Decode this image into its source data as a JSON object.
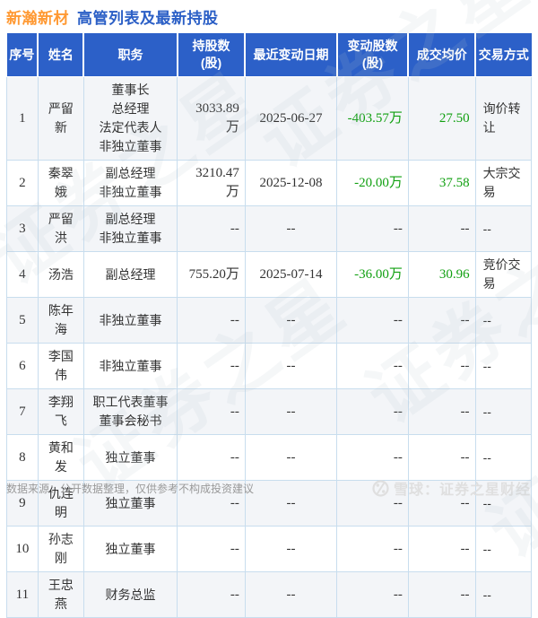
{
  "title": {
    "stock": "新瀚新材",
    "text": "高管列表及最新持股"
  },
  "colors": {
    "header_bg": "#2c60c8",
    "stock_orange": "#ff9933",
    "title_blue": "#2b5fc6",
    "cell_border": "#c8ddee",
    "alt_row_bg": "#f3f5f8",
    "negative_green": "#11a011",
    "body_text": "#333333",
    "note_gray": "#999999",
    "brand_gray": "#dfdfdf"
  },
  "chart_data": {
    "type": "table",
    "title": "新瀚新材 高管列表及最新持股",
    "columns": [
      {
        "key": "idx",
        "label": "序号",
        "align": "center",
        "serif": true
      },
      {
        "key": "name",
        "label": "姓名",
        "align": "center"
      },
      {
        "key": "position",
        "label": "职务",
        "align": "center"
      },
      {
        "key": "shares",
        "label": "持股数\n(股)",
        "align": "right",
        "serif": true
      },
      {
        "key": "date",
        "label": "最近变动日期",
        "align": "center",
        "serif": true
      },
      {
        "key": "change",
        "label": "变动股数\n(股)",
        "align": "right",
        "serif": true,
        "green": true
      },
      {
        "key": "price",
        "label": "成交均价",
        "align": "right",
        "serif": true,
        "green": true
      },
      {
        "key": "method",
        "label": "交易方式",
        "align": "left"
      }
    ],
    "rows": [
      {
        "idx": "1",
        "name": "严留新",
        "position": "董事长\n总经理\n法定代表人\n非独立董事",
        "shares": "3033.89万",
        "date": "2025-06-27",
        "change": "-403.57万",
        "price": "27.50",
        "method": "询价转让"
      },
      {
        "idx": "2",
        "name": "秦翠娥",
        "position": "副总经理\n非独立董事",
        "shares": "3210.47万",
        "date": "2025-12-08",
        "change": "-20.00万",
        "price": "37.58",
        "method": "大宗交易"
      },
      {
        "idx": "3",
        "name": "严留洪",
        "position": "副总经理\n非独立董事",
        "shares": "--",
        "date": "--",
        "change": "--",
        "price": "--",
        "method": "--"
      },
      {
        "idx": "4",
        "name": "汤浩",
        "position": "副总经理",
        "shares": "755.20万",
        "date": "2025-07-14",
        "change": "-36.00万",
        "price": "30.96",
        "method": "竞价交易"
      },
      {
        "idx": "5",
        "name": "陈年海",
        "position": "非独立董事",
        "shares": "--",
        "date": "--",
        "change": "--",
        "price": "--",
        "method": "--"
      },
      {
        "idx": "6",
        "name": "李国伟",
        "position": "非独立董事",
        "shares": "--",
        "date": "--",
        "change": "--",
        "price": "--",
        "method": "--"
      },
      {
        "idx": "7",
        "name": "李翔飞",
        "position": "职工代表董事\n董事会秘书",
        "shares": "--",
        "date": "--",
        "change": "--",
        "price": "--",
        "method": "--"
      },
      {
        "idx": "8",
        "name": "黄和发",
        "position": "独立董事",
        "shares": "--",
        "date": "--",
        "change": "--",
        "price": "--",
        "method": "--"
      },
      {
        "idx": "9",
        "name": "仇连明",
        "position": "独立董事",
        "shares": "--",
        "date": "--",
        "change": "--",
        "price": "--",
        "method": "--"
      },
      {
        "idx": "10",
        "name": "孙志刚",
        "position": "独立董事",
        "shares": "--",
        "date": "--",
        "change": "--",
        "price": "--",
        "method": "--"
      },
      {
        "idx": "11",
        "name": "王忠燕",
        "position": "财务总监",
        "shares": "--",
        "date": "--",
        "change": "--",
        "price": "--",
        "method": "--"
      }
    ]
  },
  "footer": {
    "source_note": "数据来源：公开数据整理，仅供参考不构成投资建议",
    "brand": "雪球：证券之星财经"
  },
  "watermark": {
    "text": "证券之星"
  }
}
